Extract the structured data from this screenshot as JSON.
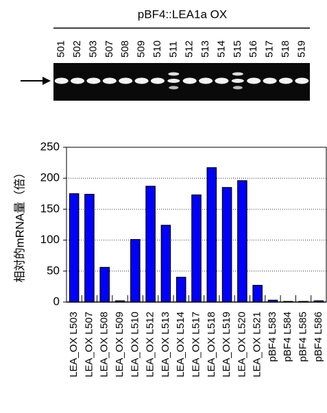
{
  "gel": {
    "title": "pBF4::LEA1a OX",
    "lanes": [
      "501",
      "502",
      "503",
      "507",
      "508",
      "509",
      "510",
      "511",
      "512",
      "513",
      "514",
      "515",
      "516",
      "517",
      "518",
      "519"
    ]
  },
  "chart_data": {
    "type": "bar",
    "y_label": "相対的mRNA量（倍）",
    "categories": [
      "LEA_OX L503",
      "LEA_OX L507",
      "LEA_OX L508",
      "LEA_OX L509",
      "LEA_OX L510",
      "LEA_OX L512",
      "LEA_OX L513",
      "LEA_OX L514",
      "LEA_OX L517",
      "LEA_OX L518",
      "LEA_OX L519",
      "LEA_OX L520",
      "LEA_OX L521",
      "pBF4 L583",
      "pBF4 L584",
      "pBF4 L585",
      "pBF4 L586"
    ],
    "values": [
      175,
      174,
      56,
      2,
      101,
      187,
      124,
      40,
      173,
      217,
      185,
      196,
      27,
      3,
      1,
      1,
      2
    ],
    "color": "#0000ff",
    "ylim": [
      0,
      250
    ],
    "yticks": [
      0,
      50,
      100,
      150,
      200,
      250
    ],
    "grid": true
  }
}
